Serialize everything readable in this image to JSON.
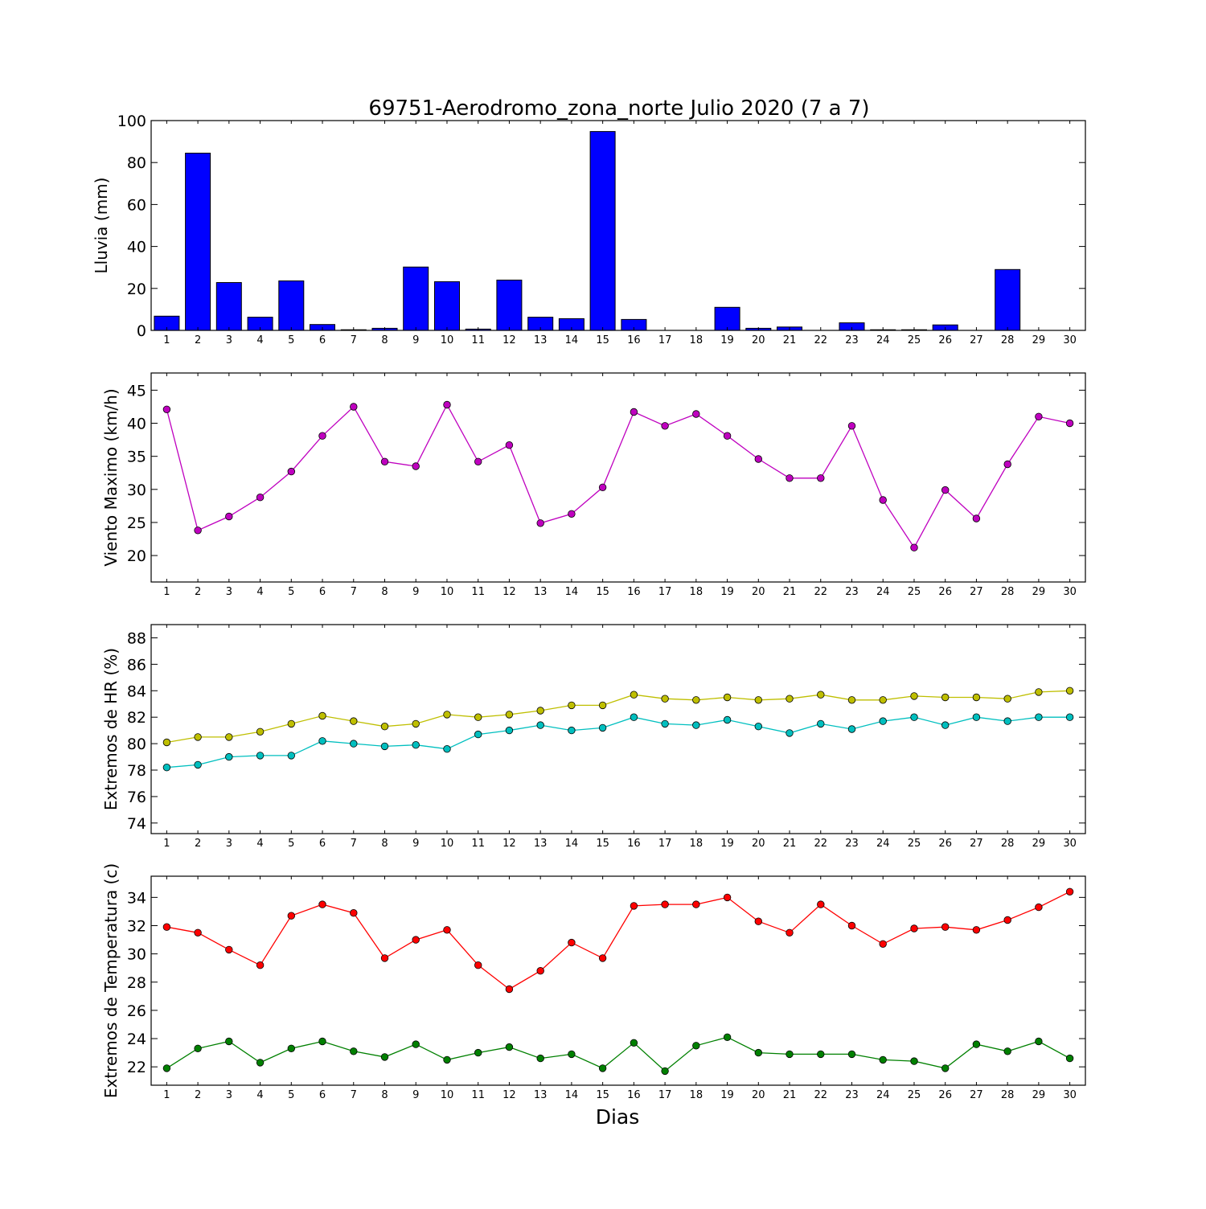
{
  "title": "69751-Aerodromo_zona_norte Julio 2020  (7 a 7)",
  "xlabel": "Dias",
  "colors": {
    "rain": "#0000ff",
    "wind": "#bf00bf",
    "hr_max": "#bfbf00",
    "hr_min": "#00bfbf",
    "temp_max": "#ff0000",
    "temp_min": "#008000"
  },
  "chart_data": [
    {
      "type": "bar",
      "ylabel": "Lluvia (mm)",
      "ylim": [
        0,
        100
      ],
      "yticks": [
        0,
        20,
        40,
        60,
        80,
        100
      ],
      "categories": [
        1,
        2,
        3,
        4,
        5,
        6,
        7,
        8,
        9,
        10,
        11,
        12,
        13,
        14,
        15,
        16,
        17,
        18,
        19,
        20,
        21,
        22,
        23,
        24,
        25,
        26,
        27,
        28,
        29,
        30
      ],
      "values": [
        6.8,
        84.5,
        22.8,
        6.3,
        23.6,
        2.8,
        0.3,
        1.0,
        30.2,
        23.2,
        0.6,
        24.0,
        6.3,
        5.6,
        94.8,
        5.2,
        0,
        0,
        11.0,
        1.0,
        1.6,
        0,
        3.6,
        0.3,
        0.3,
        2.6,
        0,
        29.0,
        0,
        0
      ]
    },
    {
      "type": "line",
      "ylabel": "Viento Maximo (km/h)",
      "ylim": [
        16,
        47.6
      ],
      "yticks": [
        20,
        25,
        30,
        35,
        40,
        45
      ],
      "x": [
        1,
        2,
        3,
        4,
        5,
        6,
        7,
        8,
        9,
        10,
        11,
        12,
        13,
        14,
        15,
        16,
        17,
        18,
        19,
        20,
        21,
        22,
        23,
        24,
        25,
        26,
        27,
        28,
        29,
        30
      ],
      "series": [
        {
          "values": [
            42.1,
            23.8,
            25.9,
            28.8,
            32.7,
            38.1,
            42.5,
            34.2,
            33.5,
            42.8,
            34.2,
            36.7,
            24.9,
            26.3,
            30.3,
            41.7,
            39.6,
            41.4,
            38.1,
            34.6,
            31.7,
            31.7,
            39.6,
            28.4,
            21.2,
            29.9,
            25.6,
            33.8,
            41.0,
            40.0
          ]
        }
      ]
    },
    {
      "type": "line",
      "ylabel": "Extremos de HR (%)",
      "ylim": [
        73.2,
        89
      ],
      "yticks": [
        74,
        76,
        78,
        80,
        82,
        84,
        86,
        88
      ],
      "x": [
        1,
        2,
        3,
        4,
        5,
        6,
        7,
        8,
        9,
        10,
        11,
        12,
        13,
        14,
        15,
        16,
        17,
        18,
        19,
        20,
        21,
        22,
        23,
        24,
        25,
        26,
        27,
        28,
        29,
        30
      ],
      "series": [
        {
          "values": [
            80.1,
            80.5,
            80.5,
            80.9,
            81.5,
            82.1,
            81.7,
            81.3,
            81.5,
            82.2,
            82.0,
            82.2,
            82.5,
            82.9,
            82.9,
            83.7,
            83.4,
            83.3,
            83.5,
            83.3,
            83.4,
            83.7,
            83.3,
            83.3,
            83.6,
            83.5,
            83.5,
            83.4,
            83.9,
            84.0
          ]
        },
        {
          "values": [
            78.2,
            78.4,
            79.0,
            79.1,
            79.1,
            80.2,
            80.0,
            79.8,
            79.9,
            79.6,
            80.7,
            81.0,
            81.4,
            81.0,
            81.2,
            82.0,
            81.5,
            81.4,
            81.8,
            81.3,
            80.8,
            81.5,
            81.1,
            81.7,
            82.0,
            81.4,
            82.0,
            81.7,
            82.0,
            82.0
          ]
        }
      ]
    },
    {
      "type": "line",
      "ylabel": "Extremos de Temperatura (c)",
      "ylim": [
        20.7,
        35.5
      ],
      "yticks": [
        22,
        24,
        26,
        28,
        30,
        32,
        34
      ],
      "x": [
        1,
        2,
        3,
        4,
        5,
        6,
        7,
        8,
        9,
        10,
        11,
        12,
        13,
        14,
        15,
        16,
        17,
        18,
        19,
        20,
        21,
        22,
        23,
        24,
        25,
        26,
        27,
        28,
        29,
        30
      ],
      "series": [
        {
          "values": [
            31.9,
            31.5,
            30.3,
            29.2,
            32.7,
            33.5,
            32.9,
            29.7,
            31.0,
            31.7,
            29.2,
            27.5,
            28.8,
            30.8,
            29.7,
            33.4,
            33.5,
            33.5,
            34.0,
            32.3,
            31.5,
            33.5,
            32.0,
            30.7,
            31.8,
            31.9,
            31.7,
            32.4,
            33.3,
            34.4
          ]
        },
        {
          "values": [
            21.9,
            23.3,
            23.8,
            22.3,
            23.3,
            23.8,
            23.1,
            22.7,
            23.6,
            22.5,
            23.0,
            23.4,
            22.6,
            22.9,
            21.9,
            23.7,
            21.7,
            23.5,
            24.1,
            23.0,
            22.9,
            22.9,
            22.9,
            22.5,
            22.4,
            21.9,
            23.6,
            23.1,
            23.8,
            22.6
          ]
        }
      ]
    }
  ]
}
